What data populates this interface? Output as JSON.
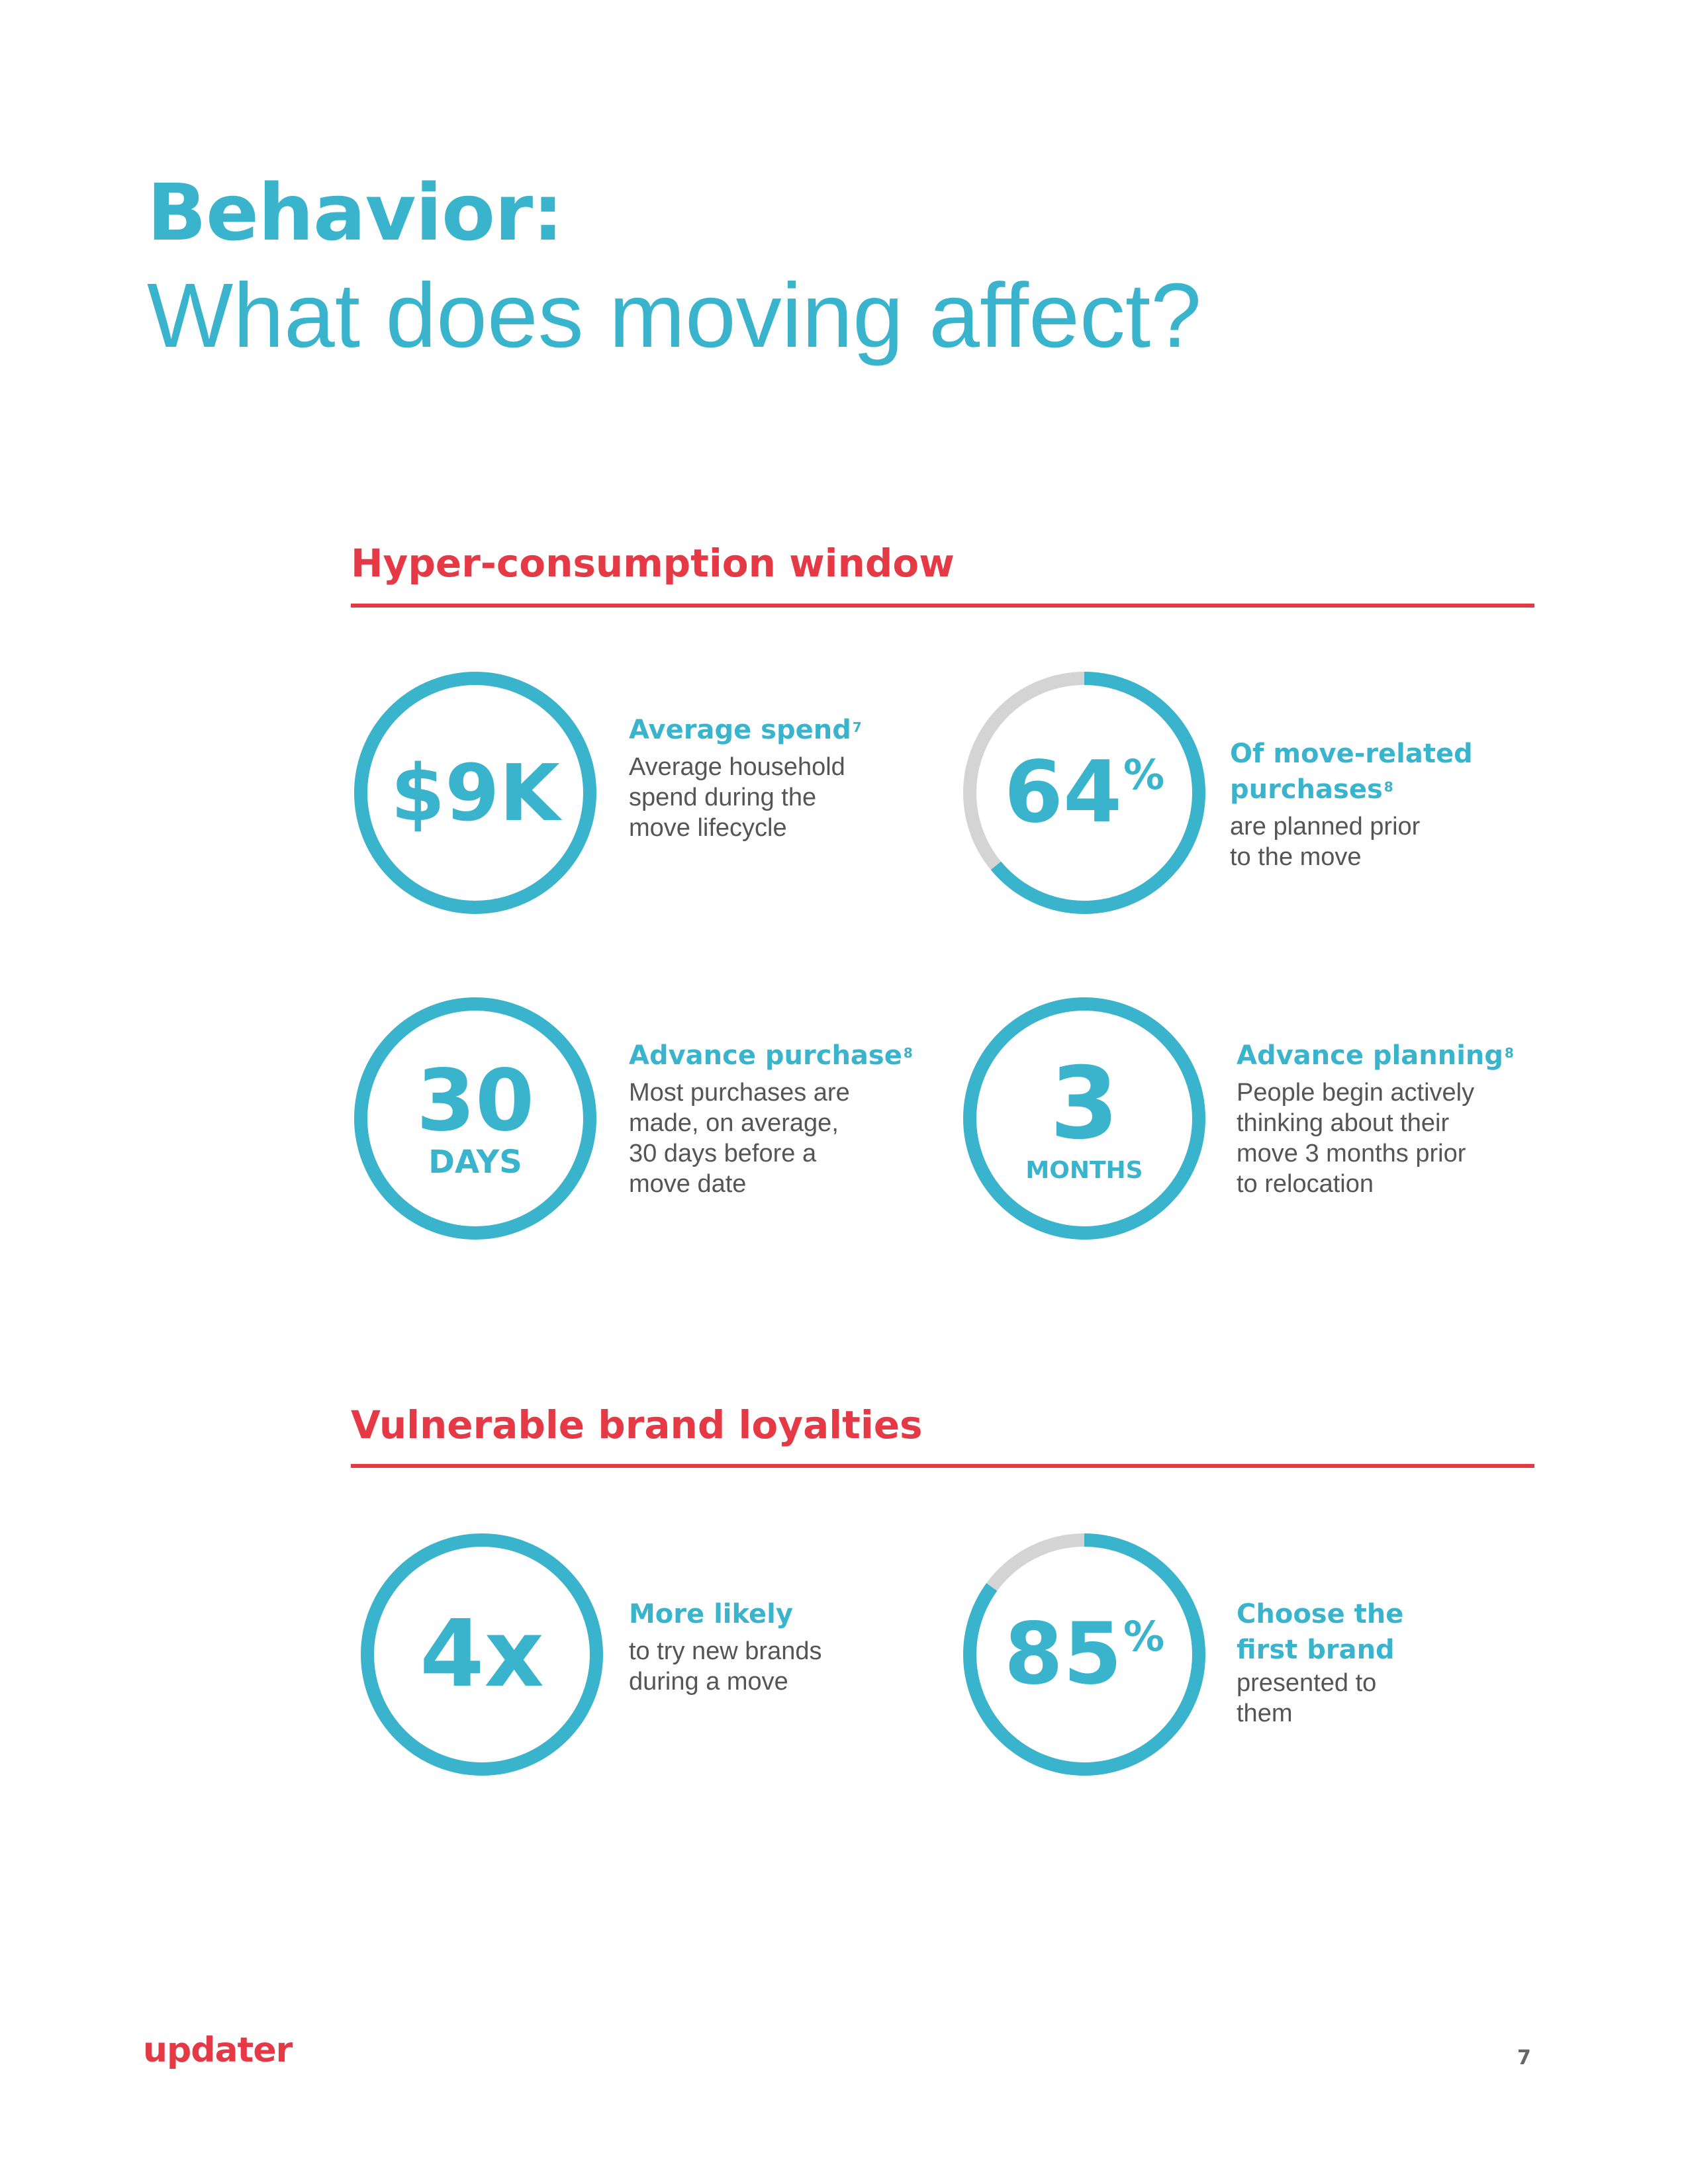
{
  "title": {
    "bold": "Behavior:",
    "light": "What does moving affect?"
  },
  "sections": [
    {
      "heading": "Hyper-consumption window",
      "stats": [
        {
          "value": "$9K",
          "unit": "",
          "percent_sign": "",
          "fill_fraction": 1.0,
          "head": "Average spend",
          "sup": "7",
          "body": [
            "Average household",
            "spend during the",
            "move lifecycle"
          ]
        },
        {
          "value": "64",
          "unit": "",
          "percent_sign": "%",
          "fill_fraction": 0.64,
          "head": "Of move-related purchases",
          "sup": "8",
          "body": [
            "are planned prior",
            "to the move"
          ]
        },
        {
          "value": "30",
          "unit": "DAYS",
          "percent_sign": "",
          "fill_fraction": 1.0,
          "head": "Advance purchase",
          "sup": "8",
          "body": [
            "Most purchases are",
            "made, on average,",
            "30 days before a",
            "move date"
          ]
        },
        {
          "value": "3",
          "unit": "MONTHS",
          "percent_sign": "",
          "fill_fraction": 1.0,
          "head": "Advance planning",
          "sup": "8",
          "body": [
            "People begin actively",
            "thinking about their",
            "move 3 months prior",
            "to relocation"
          ]
        }
      ]
    },
    {
      "heading": "Vulnerable brand loyalties",
      "stats": [
        {
          "value": "4x",
          "unit": "",
          "percent_sign": "",
          "fill_fraction": 1.0,
          "head": "More likely",
          "sup": "",
          "body": [
            "to try new brands",
            "during a move"
          ]
        },
        {
          "value": "85",
          "unit": "",
          "percent_sign": "%",
          "fill_fraction": 0.85,
          "head": "Choose the first brand",
          "sup": "",
          "body": [
            "presented to them"
          ]
        }
      ]
    }
  ],
  "colors": {
    "accent": "#3ab4cd",
    "track": "#d4d4d4",
    "red": "#e63946",
    "body_text": "#555555"
  },
  "footer": {
    "logo": "updater",
    "page_number": "7"
  }
}
